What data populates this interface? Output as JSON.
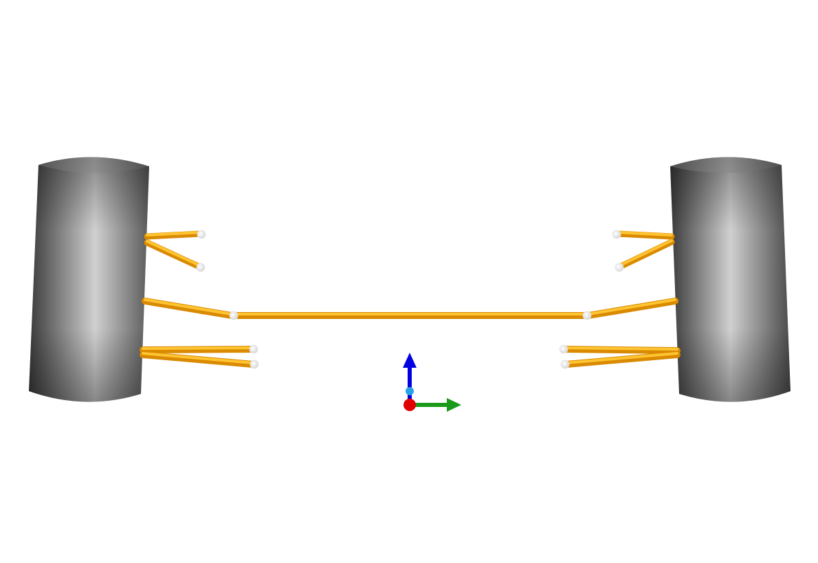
{
  "scene": {
    "background": "#ffffff",
    "colors": {
      "link": "#f5a300",
      "link_highlight": "#ffd54a",
      "link_shadow": "#d98a00",
      "joint": "#ffffff",
      "tire_dark": "#2e2e2e",
      "tire_light": "#d4d4d4",
      "axis_x": "#e00000",
      "axis_y": "#1a9a1a",
      "axis_z": "#0000e0",
      "axis_origin_marker": "#2aa0e8"
    },
    "wheels": [
      {
        "id": "left-wheel",
        "icon": "tire-icon"
      },
      {
        "id": "right-wheel",
        "icon": "tire-icon"
      }
    ],
    "links": [
      {
        "id": "left-upper-front-link"
      },
      {
        "id": "left-upper-rear-link"
      },
      {
        "id": "left-tie-rod"
      },
      {
        "id": "left-lower-front-link"
      },
      {
        "id": "left-lower-rear-link"
      },
      {
        "id": "steering-rack"
      },
      {
        "id": "right-upper-front-link"
      },
      {
        "id": "right-upper-rear-link"
      },
      {
        "id": "right-tie-rod"
      },
      {
        "id": "right-lower-front-link"
      },
      {
        "id": "right-lower-rear-link"
      }
    ],
    "axes": [
      "x",
      "y",
      "z"
    ]
  }
}
